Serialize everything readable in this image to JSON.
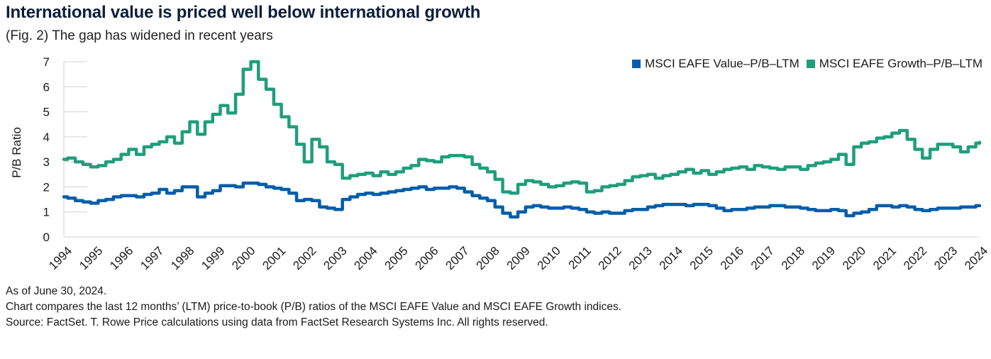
{
  "header": {
    "title": "International value is priced well below international growth",
    "subtitle": "(Fig. 2) The gap has widened in recent years"
  },
  "legend": {
    "items": [
      {
        "label": "MSCI EAFE Value–P/B–LTM",
        "color": "#005eaa"
      },
      {
        "label": "MSCI EAFE Growth–P/B–LTM",
        "color": "#1f9e7c"
      }
    ]
  },
  "notes": {
    "as_of": "As of June 30, 2024.",
    "description": "Chart compares the last 12 months’ (LTM) price-to-book (P/B) ratios of the MSCI EAFE Value and MSCI EAFE Growth indices.",
    "source": "Source: FactSet. T. Rowe Price calculations using data from FactSet Research Systems Inc. All rights reserved."
  },
  "chart_data": {
    "type": "line",
    "title": "International value is priced well below international growth",
    "subtitle": "(Fig. 2) The gap has widened in recent years",
    "xlabel": "",
    "ylabel": "P/B Ratio",
    "ylim": [
      0,
      7
    ],
    "yticks": [
      0,
      1,
      2,
      3,
      4,
      5,
      6,
      7
    ],
    "xlim": [
      1994,
      2024
    ],
    "xticks": [
      "1994",
      "1995",
      "1996",
      "1997",
      "1998",
      "1999",
      "2000",
      "2001",
      "2002",
      "2003",
      "2004",
      "2005",
      "2006",
      "2007",
      "2008",
      "2009",
      "2010",
      "2011",
      "2012",
      "2013",
      "2014",
      "2015",
      "2016",
      "2017",
      "2018",
      "2019",
      "2020",
      "2021",
      "2022",
      "2023",
      "2024"
    ],
    "grid": "horizontal-stubs",
    "legend_position": "top-right",
    "x_step": 0.25,
    "series": [
      {
        "name": "MSCI EAFE Value–P/B–LTM",
        "color": "#005eaa",
        "values": [
          1.6,
          1.55,
          1.45,
          1.4,
          1.35,
          1.45,
          1.5,
          1.6,
          1.65,
          1.65,
          1.6,
          1.7,
          1.75,
          1.9,
          1.75,
          1.85,
          2.0,
          2.0,
          1.6,
          1.75,
          1.85,
          2.05,
          2.05,
          2.0,
          2.15,
          2.15,
          2.1,
          2.0,
          1.95,
          1.9,
          1.75,
          1.45,
          1.5,
          1.45,
          1.2,
          1.15,
          1.1,
          1.5,
          1.6,
          1.7,
          1.75,
          1.7,
          1.75,
          1.8,
          1.85,
          1.9,
          1.95,
          2.0,
          1.9,
          1.95,
          1.95,
          2.0,
          1.95,
          1.8,
          1.65,
          1.55,
          1.45,
          1.2,
          0.95,
          0.8,
          1.0,
          1.2,
          1.25,
          1.2,
          1.15,
          1.15,
          1.2,
          1.15,
          1.1,
          1.0,
          0.95,
          1.0,
          0.95,
          0.95,
          1.05,
          1.1,
          1.1,
          1.2,
          1.25,
          1.3,
          1.3,
          1.3,
          1.25,
          1.3,
          1.3,
          1.25,
          1.15,
          1.05,
          1.1,
          1.1,
          1.15,
          1.2,
          1.2,
          1.25,
          1.25,
          1.2,
          1.2,
          1.15,
          1.1,
          1.05,
          1.05,
          1.1,
          1.05,
          0.85,
          0.95,
          1.0,
          1.1,
          1.25,
          1.25,
          1.2,
          1.25,
          1.2,
          1.1,
          1.05,
          1.1,
          1.15,
          1.15,
          1.15,
          1.2,
          1.2,
          1.25,
          1.25
        ]
      },
      {
        "name": "MSCI EAFE Growth–P/B–LTM",
        "color": "#1f9e7c",
        "values": [
          3.1,
          3.15,
          3.0,
          2.9,
          2.8,
          2.85,
          3.0,
          3.1,
          3.3,
          3.5,
          3.3,
          3.6,
          3.7,
          3.8,
          4.0,
          3.75,
          4.2,
          4.6,
          4.1,
          4.6,
          4.9,
          5.25,
          4.95,
          5.7,
          6.7,
          7.0,
          6.3,
          5.9,
          5.3,
          4.8,
          4.4,
          3.7,
          3.0,
          3.9,
          3.6,
          3.0,
          2.9,
          2.35,
          2.45,
          2.5,
          2.55,
          2.45,
          2.6,
          2.5,
          2.6,
          2.75,
          2.85,
          3.1,
          3.05,
          3.0,
          3.2,
          3.25,
          3.25,
          3.2,
          2.9,
          2.75,
          2.6,
          2.3,
          1.8,
          1.75,
          2.1,
          2.25,
          2.2,
          2.1,
          2.0,
          2.05,
          2.15,
          2.2,
          2.15,
          1.8,
          1.85,
          2.0,
          2.05,
          2.1,
          2.25,
          2.4,
          2.45,
          2.5,
          2.35,
          2.45,
          2.5,
          2.6,
          2.7,
          2.55,
          2.65,
          2.5,
          2.6,
          2.7,
          2.75,
          2.8,
          2.7,
          2.85,
          2.8,
          2.75,
          2.7,
          2.8,
          2.8,
          2.7,
          2.85,
          2.95,
          3.0,
          3.1,
          3.3,
          2.9,
          3.6,
          3.75,
          3.8,
          3.95,
          4.0,
          4.15,
          4.25,
          3.9,
          3.5,
          3.15,
          3.5,
          3.7,
          3.7,
          3.6,
          3.4,
          3.6,
          3.75,
          3.78
        ]
      }
    ]
  }
}
